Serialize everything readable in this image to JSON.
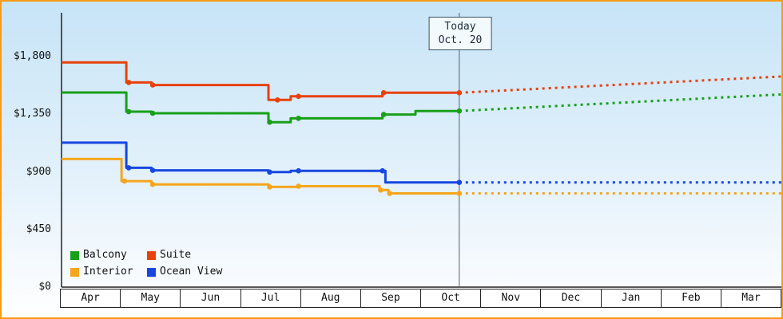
{
  "theme": {
    "border_color": "#f79b18",
    "bg_top": "#c7e4f7",
    "bg_mid": "#e3f1fb",
    "bg_bottom": "#ffffff",
    "axis_color": "#222222",
    "today_line_color": "#55606e",
    "text_color": "#111111"
  },
  "chart_data": {
    "type": "line",
    "title": "",
    "xlabel": "",
    "ylabel": "",
    "ylim": [
      0,
      1800
    ],
    "grid": false,
    "legend_position": "bottom-left",
    "x_labels": [
      "Apr",
      "May",
      "Jun",
      "Jul",
      "Aug",
      "Sep",
      "Oct",
      "Nov",
      "Dec",
      "Jan",
      "Feb",
      "Mar"
    ],
    "y_ticks": [
      {
        "label": "$1,800",
        "value": 1800
      },
      {
        "label": "$1,350",
        "value": 1350
      },
      {
        "label": "$900",
        "value": 900
      },
      {
        "label": "$450",
        "value": 450
      },
      {
        "label": "$0",
        "value": 0
      }
    ],
    "today": {
      "t": 6.63,
      "label": [
        "Today",
        "Oct. 20"
      ]
    },
    "series": [
      {
        "name": "Balcony",
        "color": "#18a018",
        "solid": [
          [
            0,
            1520
          ],
          [
            1.08,
            1520
          ],
          [
            1.08,
            1370
          ],
          [
            1.5,
            1370
          ],
          [
            1.5,
            1358
          ],
          [
            3.45,
            1358
          ],
          [
            3.45,
            1288
          ],
          [
            3.82,
            1288
          ],
          [
            3.82,
            1318
          ],
          [
            5.35,
            1318
          ],
          [
            5.35,
            1348
          ],
          [
            5.9,
            1348
          ],
          [
            5.9,
            1375
          ],
          [
            6.63,
            1375
          ]
        ],
        "dotted": [
          [
            6.63,
            1375
          ],
          [
            12,
            1505
          ]
        ],
        "markers": [
          [
            1.12,
            1370
          ],
          [
            1.52,
            1358
          ],
          [
            3.47,
            1288
          ],
          [
            3.95,
            1318
          ],
          [
            5.37,
            1348
          ],
          [
            6.63,
            1375
          ]
        ]
      },
      {
        "name": "Suite",
        "color": "#e8410c",
        "solid": [
          [
            0,
            1755
          ],
          [
            1.08,
            1755
          ],
          [
            1.08,
            1598
          ],
          [
            1.5,
            1598
          ],
          [
            1.5,
            1578
          ],
          [
            3.45,
            1578
          ],
          [
            3.45,
            1462
          ],
          [
            3.82,
            1462
          ],
          [
            3.82,
            1490
          ],
          [
            5.35,
            1490
          ],
          [
            5.35,
            1518
          ],
          [
            6.63,
            1518
          ]
        ],
        "dotted": [
          [
            6.63,
            1518
          ],
          [
            12,
            1645
          ]
        ],
        "markers": [
          [
            1.12,
            1598
          ],
          [
            1.52,
            1578
          ],
          [
            3.6,
            1462
          ],
          [
            3.95,
            1490
          ],
          [
            5.37,
            1518
          ],
          [
            6.63,
            1518
          ]
        ]
      },
      {
        "name": "Interior",
        "color": "#f5a61d",
        "solid": [
          [
            0,
            1000
          ],
          [
            1.0,
            1000
          ],
          [
            1.0,
            828
          ],
          [
            1.5,
            828
          ],
          [
            1.5,
            802
          ],
          [
            3.45,
            802
          ],
          [
            3.45,
            782
          ],
          [
            3.95,
            782
          ],
          [
            3.95,
            788
          ],
          [
            5.3,
            788
          ],
          [
            5.3,
            758
          ],
          [
            5.45,
            758
          ],
          [
            5.45,
            732
          ],
          [
            6.63,
            732
          ]
        ],
        "dotted": [
          [
            6.63,
            732
          ],
          [
            12,
            732
          ]
        ],
        "markers": [
          [
            1.05,
            828
          ],
          [
            1.52,
            802
          ],
          [
            3.47,
            782
          ],
          [
            3.95,
            788
          ],
          [
            5.32,
            758
          ],
          [
            5.47,
            732
          ],
          [
            6.63,
            732
          ]
        ]
      },
      {
        "name": "Ocean View",
        "color": "#1747e0",
        "solid": [
          [
            0,
            1128
          ],
          [
            1.08,
            1128
          ],
          [
            1.08,
            932
          ],
          [
            1.5,
            932
          ],
          [
            1.5,
            912
          ],
          [
            3.45,
            912
          ],
          [
            3.45,
            898
          ],
          [
            3.82,
            898
          ],
          [
            3.82,
            908
          ],
          [
            5.4,
            908
          ],
          [
            5.4,
            818
          ],
          [
            6.63,
            818
          ]
        ],
        "dotted": [
          [
            6.63,
            818
          ],
          [
            12,
            818
          ]
        ],
        "markers": [
          [
            1.12,
            932
          ],
          [
            1.52,
            912
          ],
          [
            3.47,
            898
          ],
          [
            3.95,
            908
          ],
          [
            5.35,
            908
          ],
          [
            6.63,
            818
          ]
        ]
      }
    ]
  }
}
